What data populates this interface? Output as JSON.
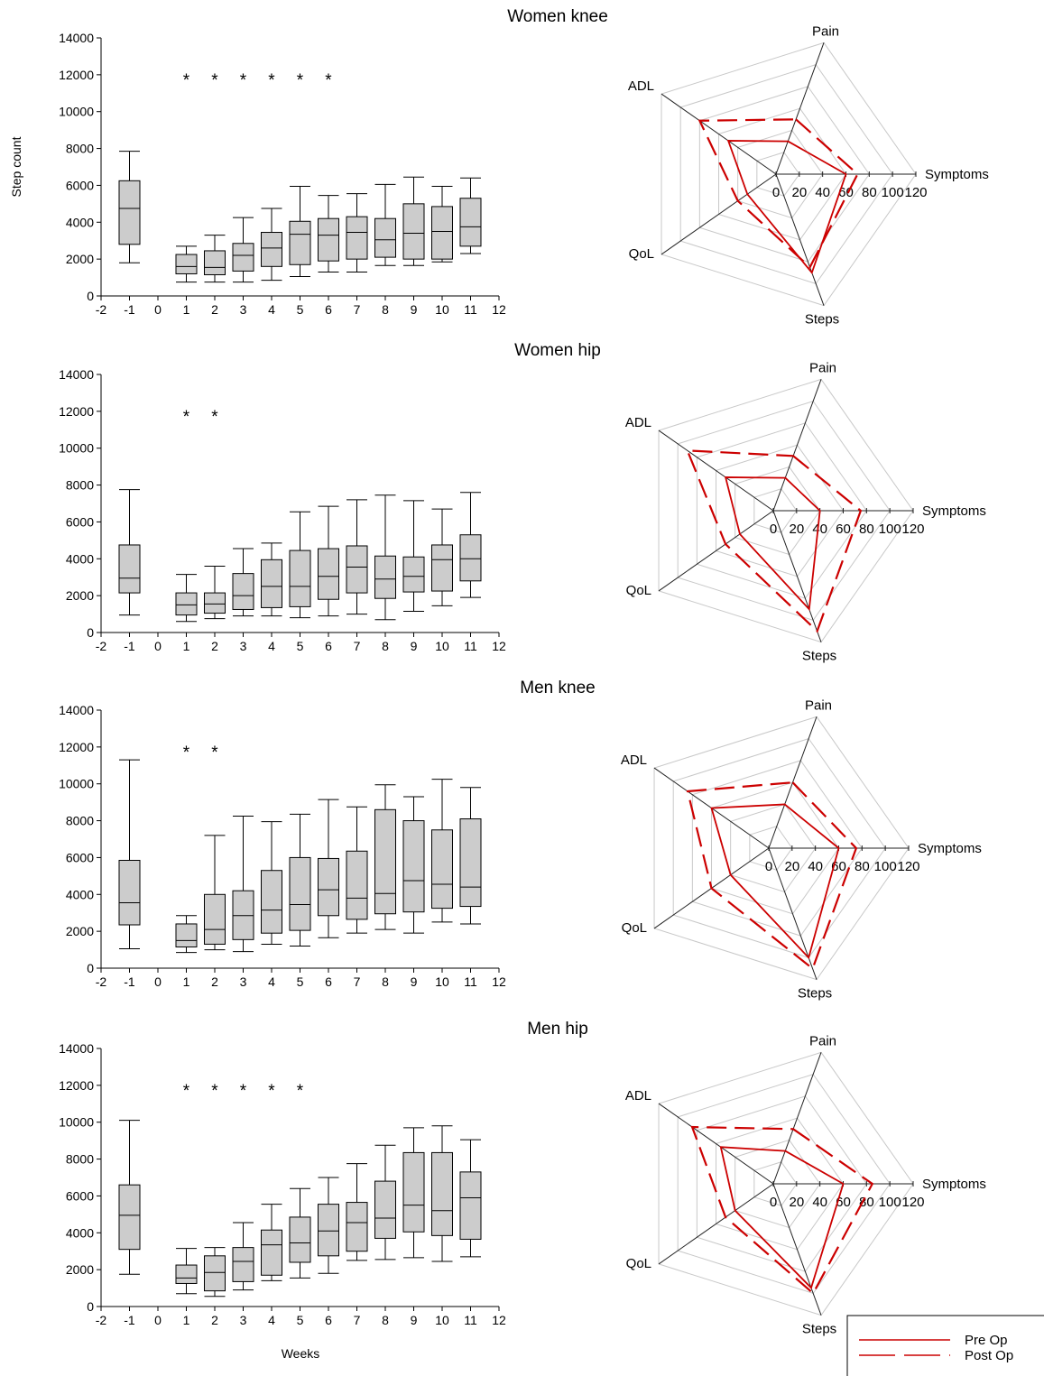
{
  "figure": {
    "xlabel": "Weeks",
    "ylabel": "Step count",
    "legend": {
      "position": "bottom-right",
      "items": [
        {
          "label": "Pre Op",
          "style": "solid",
          "color": "#cc0000"
        },
        {
          "label": "Post Op",
          "style": "dashed",
          "color": "#cc0000"
        }
      ]
    }
  },
  "chart_data": [
    {
      "type": "box",
      "title": "Women knee",
      "xlabel": "",
      "ylabel": "Step count",
      "xlim": [
        -2,
        12
      ],
      "ylim": [
        0,
        14000
      ],
      "xticks": [
        -2,
        -1,
        0,
        1,
        2,
        3,
        4,
        5,
        6,
        7,
        8,
        9,
        10,
        11,
        12
      ],
      "yticks": [
        0,
        2000,
        4000,
        6000,
        8000,
        10000,
        12000,
        14000
      ],
      "boxes": [
        {
          "x": -1,
          "min": 1800,
          "q1": 2800,
          "median": 4750,
          "q3": 6250,
          "max": 7850
        },
        {
          "x": 1,
          "min": 750,
          "q1": 1200,
          "median": 1600,
          "q3": 2250,
          "max": 2700
        },
        {
          "x": 2,
          "min": 750,
          "q1": 1150,
          "median": 1550,
          "q3": 2450,
          "max": 3300
        },
        {
          "x": 3,
          "min": 750,
          "q1": 1350,
          "median": 2200,
          "q3": 2850,
          "max": 4250
        },
        {
          "x": 4,
          "min": 850,
          "q1": 1600,
          "median": 2600,
          "q3": 3450,
          "max": 4750
        },
        {
          "x": 5,
          "min": 1050,
          "q1": 1700,
          "median": 3350,
          "q3": 4050,
          "max": 5950
        },
        {
          "x": 6,
          "min": 1300,
          "q1": 1900,
          "median": 3300,
          "q3": 4200,
          "max": 5450
        },
        {
          "x": 7,
          "min": 1300,
          "q1": 2000,
          "median": 3450,
          "q3": 4300,
          "max": 5550
        },
        {
          "x": 8,
          "min": 1650,
          "q1": 2100,
          "median": 3050,
          "q3": 4200,
          "max": 6050
        },
        {
          "x": 9,
          "min": 1650,
          "q1": 2000,
          "median": 3400,
          "q3": 5000,
          "max": 6450
        },
        {
          "x": 10,
          "min": 1850,
          "q1": 2000,
          "median": 3500,
          "q3": 4850,
          "max": 5950
        },
        {
          "x": 11,
          "min": 2300,
          "q1": 2700,
          "median": 3750,
          "q3": 5300,
          "max": 6400
        }
      ],
      "significant_weeks": [
        1,
        2,
        3,
        4,
        5,
        6
      ],
      "marker": "*"
    },
    {
      "type": "radar",
      "title": "Women knee",
      "axes": [
        "Pain",
        "Symptoms",
        "Steps",
        "QoL",
        "ADL"
      ],
      "scale_labels": [
        "0",
        "20",
        "40",
        "60",
        "80",
        "100",
        "120"
      ],
      "rmax": 120,
      "series": [
        {
          "name": "Pre Op",
          "style": "solid",
          "values": [
            30,
            60,
            90,
            30,
            50
          ]
        },
        {
          "name": "Post Op",
          "style": "dashed",
          "values": [
            50,
            70,
            85,
            40,
            80
          ]
        }
      ]
    },
    {
      "type": "box",
      "title": "Women hip",
      "xlabel": "",
      "ylabel": "Step count",
      "xlim": [
        -2,
        12
      ],
      "ylim": [
        0,
        14000
      ],
      "xticks": [
        -2,
        -1,
        0,
        1,
        2,
        3,
        4,
        5,
        6,
        7,
        8,
        9,
        10,
        11,
        12
      ],
      "yticks": [
        0,
        2000,
        4000,
        6000,
        8000,
        10000,
        12000,
        14000
      ],
      "boxes": [
        {
          "x": -1,
          "min": 950,
          "q1": 2150,
          "median": 2950,
          "q3": 4750,
          "max": 7750
        },
        {
          "x": 1,
          "min": 600,
          "q1": 950,
          "median": 1500,
          "q3": 2150,
          "max": 3150
        },
        {
          "x": 2,
          "min": 750,
          "q1": 1050,
          "median": 1550,
          "q3": 2150,
          "max": 3600
        },
        {
          "x": 3,
          "min": 900,
          "q1": 1250,
          "median": 2000,
          "q3": 3200,
          "max": 4550
        },
        {
          "x": 4,
          "min": 900,
          "q1": 1350,
          "median": 2500,
          "q3": 3950,
          "max": 4850
        },
        {
          "x": 5,
          "min": 800,
          "q1": 1400,
          "median": 2500,
          "q3": 4450,
          "max": 6550
        },
        {
          "x": 6,
          "min": 900,
          "q1": 1800,
          "median": 3050,
          "q3": 4550,
          "max": 6850
        },
        {
          "x": 7,
          "min": 1000,
          "q1": 2150,
          "median": 3550,
          "q3": 4700,
          "max": 7200
        },
        {
          "x": 8,
          "min": 700,
          "q1": 1850,
          "median": 2900,
          "q3": 4150,
          "max": 7450
        },
        {
          "x": 9,
          "min": 1150,
          "q1": 2200,
          "median": 3050,
          "q3": 4100,
          "max": 7150
        },
        {
          "x": 10,
          "min": 1450,
          "q1": 2250,
          "median": 3950,
          "q3": 4750,
          "max": 6700
        },
        {
          "x": 11,
          "min": 1900,
          "q1": 2800,
          "median": 4000,
          "q3": 5300,
          "max": 7600
        }
      ],
      "significant_weeks": [
        1,
        2
      ],
      "marker": "*"
    },
    {
      "type": "radar",
      "title": "Women hip",
      "axes": [
        "Pain",
        "Symptoms",
        "Steps",
        "QoL",
        "ADL"
      ],
      "scale_labels": [
        "0",
        "20",
        "40",
        "60",
        "80",
        "100",
        "120"
      ],
      "rmax": 120,
      "series": [
        {
          "name": "Pre Op",
          "style": "solid",
          "values": [
            30,
            40,
            90,
            35,
            50
          ]
        },
        {
          "name": "Post Op",
          "style": "dashed",
          "values": [
            50,
            75,
            110,
            50,
            90
          ]
        }
      ]
    },
    {
      "type": "box",
      "title": "Men knee",
      "xlabel": "",
      "ylabel": "Step count",
      "xlim": [
        -2,
        12
      ],
      "ylim": [
        0,
        14000
      ],
      "xticks": [
        -2,
        -1,
        0,
        1,
        2,
        3,
        4,
        5,
        6,
        7,
        8,
        9,
        10,
        11,
        12
      ],
      "yticks": [
        0,
        2000,
        4000,
        6000,
        8000,
        10000,
        12000,
        14000
      ],
      "boxes": [
        {
          "x": -1,
          "min": 1050,
          "q1": 2350,
          "median": 3550,
          "q3": 5850,
          "max": 11300
        },
        {
          "x": 1,
          "min": 850,
          "q1": 1150,
          "median": 1500,
          "q3": 2400,
          "max": 2850
        },
        {
          "x": 2,
          "min": 1000,
          "q1": 1300,
          "median": 2100,
          "q3": 4000,
          "max": 7200
        },
        {
          "x": 3,
          "min": 900,
          "q1": 1550,
          "median": 2850,
          "q3": 4200,
          "max": 8250
        },
        {
          "x": 4,
          "min": 1300,
          "q1": 1900,
          "median": 3150,
          "q3": 5300,
          "max": 7950
        },
        {
          "x": 5,
          "min": 1200,
          "q1": 2050,
          "median": 3450,
          "q3": 6000,
          "max": 8350
        },
        {
          "x": 6,
          "min": 1650,
          "q1": 2850,
          "median": 4250,
          "q3": 5950,
          "max": 9150
        },
        {
          "x": 7,
          "min": 1900,
          "q1": 2650,
          "median": 3800,
          "q3": 6350,
          "max": 8750
        },
        {
          "x": 8,
          "min": 2100,
          "q1": 2950,
          "median": 4050,
          "q3": 8600,
          "max": 9950
        },
        {
          "x": 9,
          "min": 1900,
          "q1": 3050,
          "median": 4750,
          "q3": 8000,
          "max": 9300
        },
        {
          "x": 10,
          "min": 2500,
          "q1": 3250,
          "median": 4550,
          "q3": 7500,
          "max": 10250
        },
        {
          "x": 11,
          "min": 2400,
          "q1": 3350,
          "median": 4400,
          "q3": 8100,
          "max": 9800
        }
      ],
      "significant_weeks": [
        1,
        2
      ],
      "marker": "*"
    },
    {
      "type": "radar",
      "title": "Men knee",
      "axes": [
        "Pain",
        "Symptoms",
        "Steps",
        "QoL",
        "ADL"
      ],
      "scale_labels": [
        "0",
        "20",
        "40",
        "60",
        "80",
        "100",
        "120"
      ],
      "rmax": 120,
      "series": [
        {
          "name": "Pre Op",
          "style": "solid",
          "values": [
            40,
            60,
            100,
            40,
            60
          ]
        },
        {
          "name": "Post Op",
          "style": "dashed",
          "values": [
            60,
            75,
            110,
            60,
            85
          ]
        }
      ]
    },
    {
      "type": "box",
      "title": "Men hip",
      "xlabel": "Weeks",
      "ylabel": "Step count",
      "xlim": [
        -2,
        12
      ],
      "ylim": [
        0,
        14000
      ],
      "xticks": [
        -2,
        -1,
        0,
        1,
        2,
        3,
        4,
        5,
        6,
        7,
        8,
        9,
        10,
        11,
        12
      ],
      "yticks": [
        0,
        2000,
        4000,
        6000,
        8000,
        10000,
        12000,
        14000
      ],
      "boxes": [
        {
          "x": -1,
          "min": 1750,
          "q1": 3100,
          "median": 4950,
          "q3": 6600,
          "max": 10100
        },
        {
          "x": 1,
          "min": 700,
          "q1": 1250,
          "median": 1550,
          "q3": 2250,
          "max": 3150
        },
        {
          "x": 2,
          "min": 550,
          "q1": 850,
          "median": 1850,
          "q3": 2750,
          "max": 3200
        },
        {
          "x": 3,
          "min": 900,
          "q1": 1350,
          "median": 2450,
          "q3": 3200,
          "max": 4550
        },
        {
          "x": 4,
          "min": 1400,
          "q1": 1700,
          "median": 3350,
          "q3": 4150,
          "max": 5550
        },
        {
          "x": 5,
          "min": 1550,
          "q1": 2400,
          "median": 3450,
          "q3": 4850,
          "max": 6400
        },
        {
          "x": 6,
          "min": 1800,
          "q1": 2750,
          "median": 4100,
          "q3": 5550,
          "max": 7000
        },
        {
          "x": 7,
          "min": 2500,
          "q1": 3000,
          "median": 4550,
          "q3": 5650,
          "max": 7750
        },
        {
          "x": 8,
          "min": 2550,
          "q1": 3700,
          "median": 4800,
          "q3": 6800,
          "max": 8750
        },
        {
          "x": 9,
          "min": 2650,
          "q1": 4050,
          "median": 5500,
          "q3": 8350,
          "max": 9700
        },
        {
          "x": 10,
          "min": 2450,
          "q1": 3850,
          "median": 5200,
          "q3": 8350,
          "max": 9800
        },
        {
          "x": 11,
          "min": 2700,
          "q1": 3650,
          "median": 5900,
          "q3": 7300,
          "max": 9050
        }
      ],
      "significant_weeks": [
        1,
        2,
        3,
        4,
        5
      ],
      "marker": "*"
    },
    {
      "type": "radar",
      "title": "Men hip",
      "axes": [
        "Pain",
        "Symptoms",
        "Steps",
        "QoL",
        "ADL"
      ],
      "scale_labels": [
        "0",
        "20",
        "40",
        "60",
        "80",
        "100",
        "120"
      ],
      "rmax": 120,
      "series": [
        {
          "name": "Pre Op",
          "style": "solid",
          "values": [
            30,
            60,
            95,
            40,
            55
          ]
        },
        {
          "name": "Post Op",
          "style": "dashed",
          "values": [
            50,
            85,
            100,
            50,
            85
          ]
        }
      ]
    }
  ]
}
